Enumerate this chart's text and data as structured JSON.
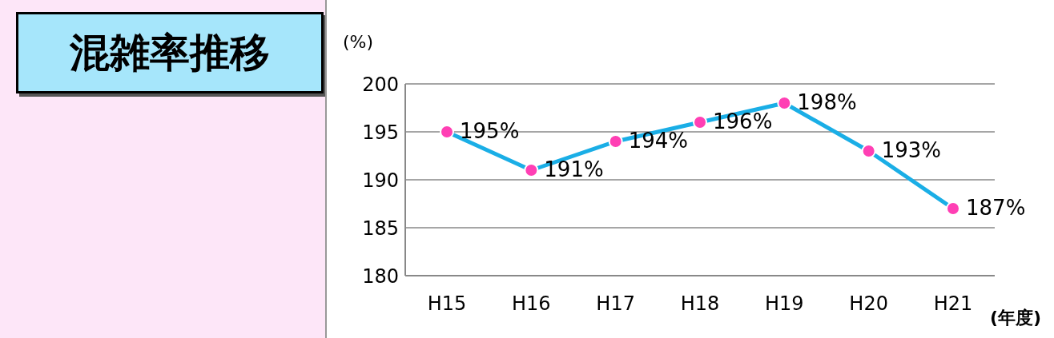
{
  "chart_data": {
    "type": "line",
    "title": "混雑率推移",
    "ylabel": "(%)",
    "xlabel": "(年度)",
    "categories": [
      "H15",
      "H16",
      "H17",
      "H18",
      "H19",
      "H20",
      "H21"
    ],
    "series": [
      {
        "color": "#1aaee6",
        "values": [
          195,
          191,
          194,
          196,
          198,
          193,
          187
        ],
        "value_labels": [
          "195%",
          "191%",
          "194%",
          "196%",
          "198%",
          "193%",
          "187%"
        ]
      }
    ],
    "ylim": [
      180,
      200
    ],
    "yticks": [
      180,
      185,
      190,
      195,
      200
    ],
    "grid": "y",
    "marker": "circle",
    "legend": false
  }
}
